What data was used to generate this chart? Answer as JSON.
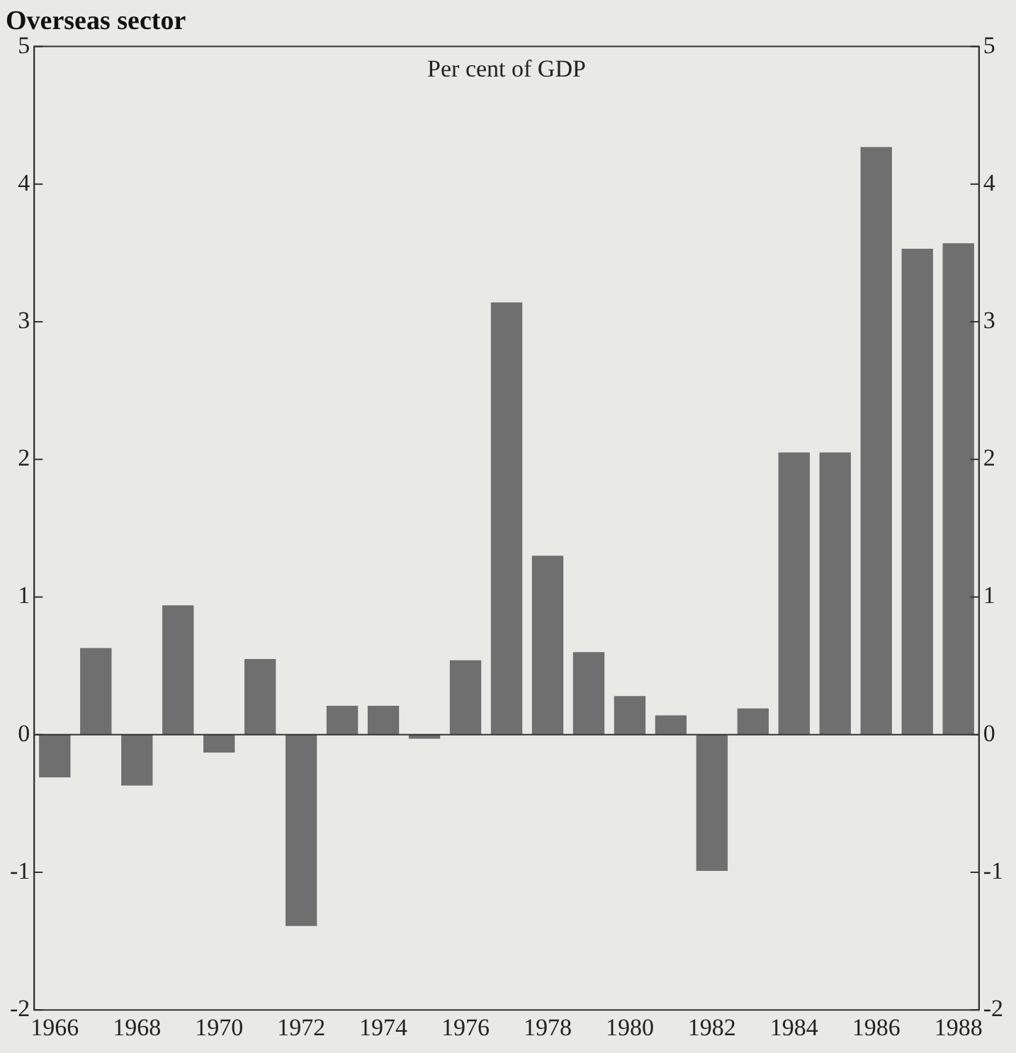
{
  "chart_data": {
    "type": "bar",
    "title": "Overseas sector",
    "annotations": [
      "Per cent of GDP"
    ],
    "categories": [
      "1966",
      null,
      "1968",
      null,
      "1970",
      null,
      "1972",
      null,
      "1974",
      null,
      "1976",
      null,
      "1978",
      null,
      "1980",
      null,
      "1982",
      null,
      "1984",
      null,
      "1986",
      null,
      "1988"
    ],
    "values": [
      -0.31,
      0.63,
      -0.37,
      0.94,
      -0.13,
      0.55,
      -1.39,
      0.21,
      0.21,
      -0.03,
      0.54,
      3.14,
      1.3,
      0.6,
      0.28,
      0.14,
      -0.99,
      0.19,
      2.05,
      2.05,
      4.27,
      3.53,
      3.57
    ],
    "color": "#6f6f6f",
    "ylim": [
      -2,
      5
    ],
    "yticks": [
      -2,
      -1,
      0,
      1,
      2,
      3,
      4,
      5
    ],
    "y2lim": [
      -2,
      5
    ],
    "y2ticks": [
      -2,
      -1,
      0,
      1,
      2,
      3,
      4,
      5
    ],
    "ref_lines": [
      {
        "axis": "y",
        "value": 0
      }
    ],
    "grid": false,
    "legend": false
  }
}
